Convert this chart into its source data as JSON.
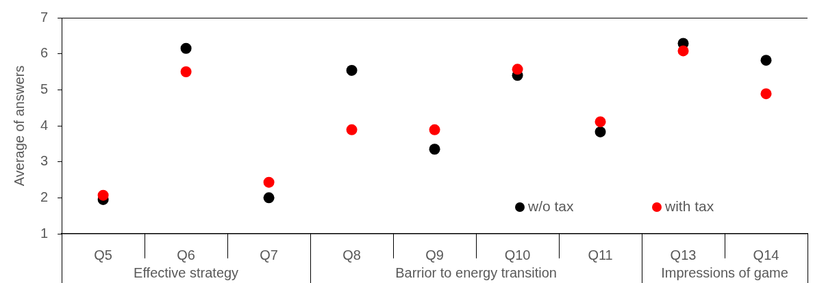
{
  "chart_data": {
    "type": "scatter",
    "ylabel": "Average of answers",
    "categories": [
      "Q5",
      "Q6",
      "Q7",
      "Q8",
      "Q9",
      "Q10",
      "Q11",
      "Q13",
      "Q14"
    ],
    "series": [
      {
        "name": "w/o tax",
        "color": "#000000",
        "values": [
          1.95,
          6.15,
          2.0,
          5.54,
          3.35,
          5.4,
          3.83,
          6.29,
          5.82
        ]
      },
      {
        "name": "with tax",
        "color": "#ff0000",
        "values": [
          2.07,
          5.5,
          2.43,
          3.89,
          3.89,
          5.57,
          4.11,
          6.08,
          4.89
        ]
      }
    ],
    "ylim": [
      1,
      7
    ],
    "yticks": [
      1,
      2,
      3,
      4,
      5,
      6,
      7
    ],
    "marker": "circle",
    "legend": "bottom right",
    "annotations": [
      "Effective strategy",
      "Barrior to energy transition",
      "Impressions of game"
    ]
  }
}
